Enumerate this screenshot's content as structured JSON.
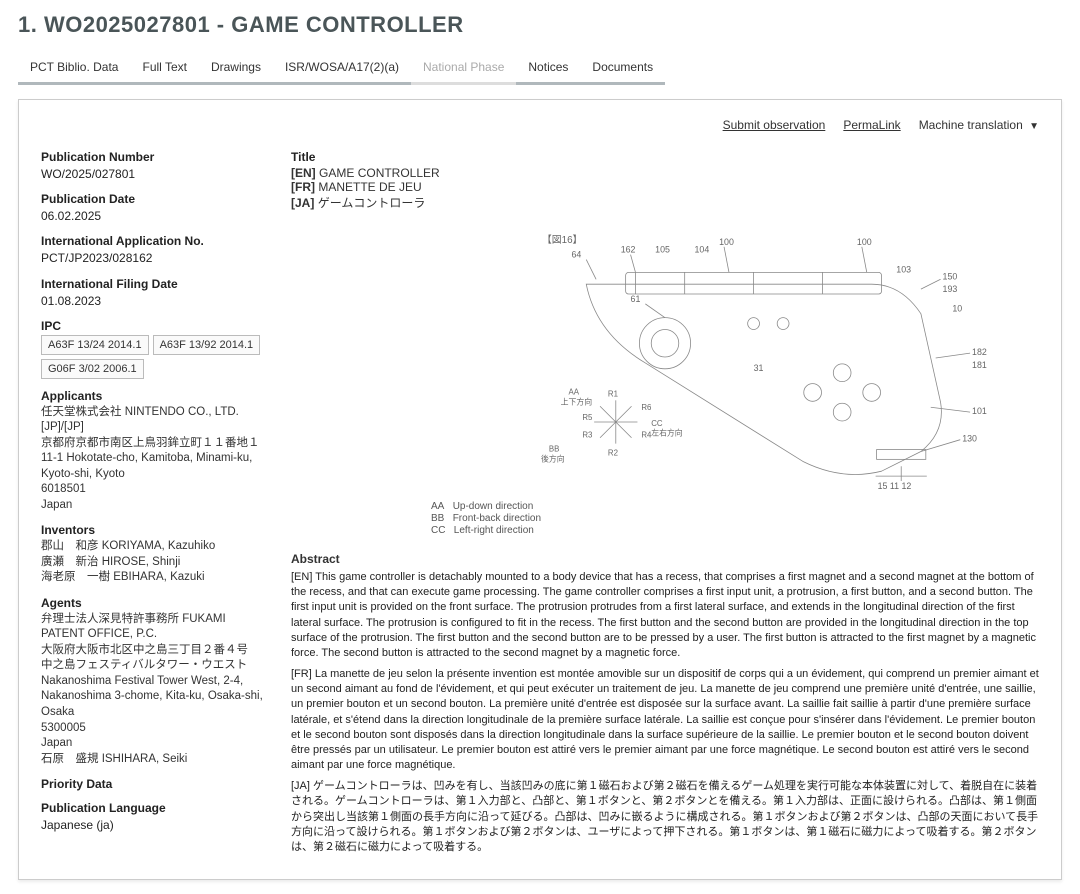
{
  "header": {
    "title": "1. WO2025027801 - GAME CONTROLLER"
  },
  "tabs": [
    {
      "label": "PCT Biblio. Data",
      "enabled": true
    },
    {
      "label": "Full Text",
      "enabled": true
    },
    {
      "label": "Drawings",
      "enabled": true
    },
    {
      "label": "ISR/WOSA/A17(2)(a)",
      "enabled": true
    },
    {
      "label": "National Phase",
      "enabled": false
    },
    {
      "label": "Notices",
      "enabled": true
    },
    {
      "label": "Documents",
      "enabled": true
    }
  ],
  "topbar": {
    "submit": "Submit observation",
    "permalink": "PermaLink",
    "machine_translation": "Machine translation"
  },
  "left": {
    "pub_no_label": "Publication Number",
    "pub_no": "WO/2025/027801",
    "pub_date_label": "Publication Date",
    "pub_date": "06.02.2025",
    "appl_no_label": "International Application No.",
    "appl_no": "PCT/JP2023/028162",
    "filing_date_label": "International Filing Date",
    "filing_date": "01.08.2023",
    "ipc_label": "IPC",
    "ipc": [
      "A63F 13/24 2014.1",
      "A63F 13/92 2014.1",
      "G06F 3/02 2006.1"
    ],
    "applicants_label": "Applicants",
    "applicants": "任天堂株式会社 NINTENDO CO., LTD. [JP]/[JP]\n京都府京都市南区上鳥羽鉾立町１１番地１\n11-1 Hokotate-cho, Kamitoba, Minami-ku, Kyoto-shi, Kyoto\n6018501\nJapan",
    "inventors_label": "Inventors",
    "inventors": "郡山　和彦 KORIYAMA, Kazuhiko\n廣瀬　新治 HIROSE, Shinji\n海老原　一樹 EBIHARA, Kazuki",
    "agents_label": "Agents",
    "agents": "弁理士法人深見特許事務所 FUKAMI PATENT OFFICE, P.C.\n大阪府大阪市北区中之島三丁目２番４号\n中之島フェスティバルタワー・ウエスト\nNakanoshima Festival Tower West, 2-4, Nakanoshima 3-chome, Kita-ku, Osaka-shi, Osaka\n5300005\nJapan\n石原　盛規 ISHIHARA, Seiki",
    "priority_label": "Priority Data",
    "priority": "",
    "publang_label": "Publication Language",
    "publang": "Japanese (ja)"
  },
  "right": {
    "title_label": "Title",
    "titles": {
      "en": {
        "pre": "[EN]",
        "text": "GAME CONTROLLER"
      },
      "fr": {
        "pre": "[FR]",
        "text": "MANETTE DE JEU"
      },
      "ja": {
        "pre": "[JA]",
        "text": "ゲームコントローラ"
      }
    },
    "fig_label": "【図16】",
    "legend": {
      "aa": {
        "code": "AA",
        "text": "Up-down direction"
      },
      "bb": {
        "code": "BB",
        "text": "Front-back direction"
      },
      "cc": {
        "code": "CC",
        "text": "Left-right direction"
      }
    },
    "abstract_label": "Abstract",
    "abstract_en": "[EN] This game controller is detachably mounted to a body device that has a recess, that comprises a first magnet and a second magnet at the bottom of the recess, and that can execute game processing. The game controller comprises a first input unit, a protrusion, a first button, and a second button. The first input unit is provided on the front surface. The protrusion protrudes from a first lateral surface, and extends in the longitudinal direction of the first lateral surface. The protrusion is configured to fit in the recess. The first button and the second button are provided in the longitudinal direction in the top surface of the protrusion. The first button and the second button are to be pressed by a user. The first button is attracted to the first magnet by a magnetic force. The second button is attracted to the second magnet by a magnetic force.",
    "abstract_fr": "[FR] La manette de jeu selon la présente invention est montée amovible sur un dispositif de corps qui a un évidement, qui comprend un premier aimant et un second aimant au fond de l'évidement, et qui peut exécuter un traitement de jeu. La manette de jeu comprend une première unité d'entrée, une saillie, un premier bouton et un second bouton. La première unité d'entrée est disposée sur la surface avant. La saillie fait saillie à partir d'une première surface latérale, et s'étend dans la direction longitudinale de la première surface latérale. La saillie est conçue pour s'insérer dans l'évidement. Le premier bouton et le second bouton sont disposés dans la direction longitudinale dans la surface supérieure de la saillie. Le premier bouton et le second bouton doivent être pressés par un utilisateur. Le premier bouton est attiré vers le premier aimant par une force magnétique. Le second bouton est attiré vers le second aimant par une force magnétique.",
    "abstract_ja": "[JA] ゲームコントローラは、凹みを有し、当該凹みの底に第１磁石および第２磁石を備えるゲーム処理を実行可能な本体装置に対して、着脱自在に装着される。ゲームコントローラは、第１入力部と、凸部と、第１ボタンと、第２ボタンとを備える。第１入力部は、正面に設けられる。凸部は、第１側面から突出し当該第１側面の長手方向に沿って延びる。凸部は、凹みに嵌るように構成される。第１ボタンおよび第２ボタンは、凸部の天面において長手方向に沿って設けられる。第１ボタンおよび第２ボタンは、ユーザによって押下される。第１ボタンは、第１磁石に磁力によって吸着する。第２ボタンは、第２磁石に磁力によって吸着する。"
  },
  "colors": {
    "title": "#4a5558",
    "tab_underline": "#b0b8bc",
    "border": "#cccccc",
    "text": "#222222"
  }
}
